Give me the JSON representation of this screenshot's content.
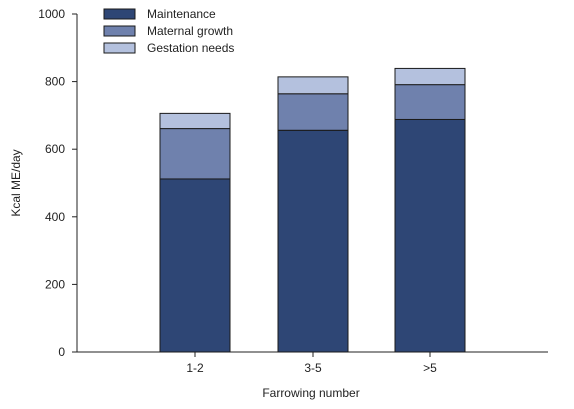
{
  "chart_data": {
    "type": "bar",
    "stacked": true,
    "categories": [
      "1-2",
      "3-5",
      ">5"
    ],
    "series": [
      {
        "name": "Maintenance",
        "values": [
          512,
          656,
          688
        ],
        "color": "#2e4675"
      },
      {
        "name": "Maternal growth",
        "values": [
          149,
          108,
          103
        ],
        "color": "#6f81ad"
      },
      {
        "name": "Gestation needs",
        "values": [
          45,
          50,
          48
        ],
        "color": "#b4c1de"
      }
    ],
    "title": "",
    "xlabel": "Farrowing number",
    "ylabel": "Kcal ME/day",
    "ylim": [
      0,
      1000
    ],
    "yticks": [
      0,
      200,
      400,
      600,
      800,
      1000
    ],
    "grid": false,
    "legend": "top-left"
  }
}
